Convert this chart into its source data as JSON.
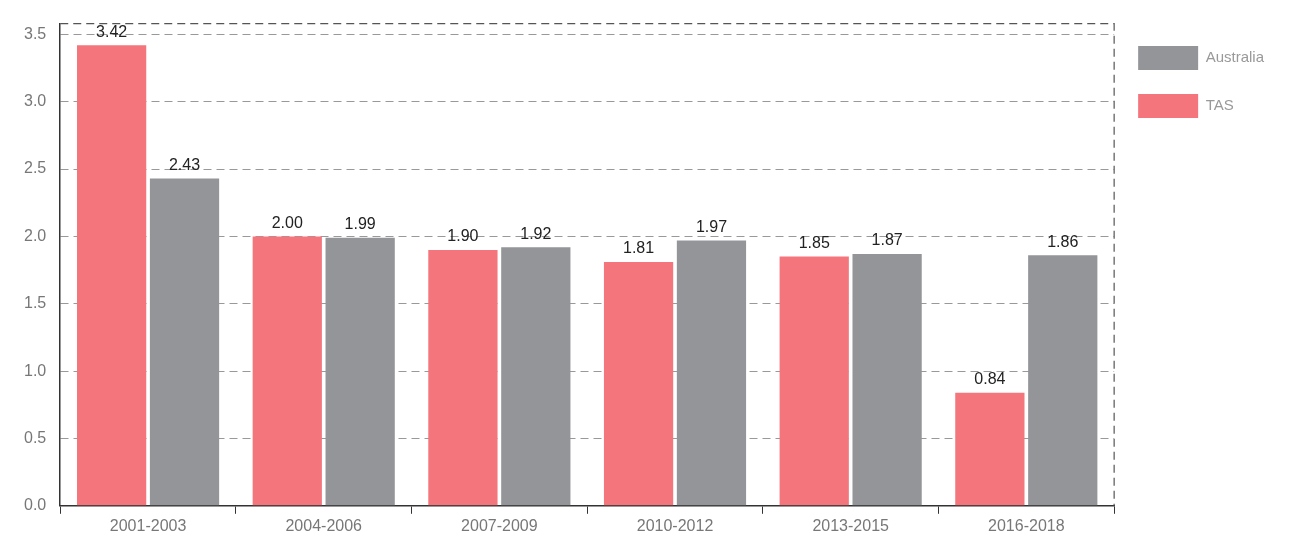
{
  "chart_data": {
    "type": "bar",
    "categories": [
      "2001-2003",
      "2004-2006",
      "2007-2009",
      "2010-2012",
      "2013-2015",
      "2016-2018"
    ],
    "series": [
      {
        "name": "TAS",
        "color": "#f4757c",
        "values": [
          3.42,
          2.0,
          1.9,
          1.81,
          1.85,
          0.84
        ],
        "value_labels": [
          "3.42",
          "2.00",
          "1.90",
          "1.81",
          "1.85",
          "0.84"
        ]
      },
      {
        "name": "Australia",
        "color": "#939598",
        "values": [
          2.43,
          1.99,
          1.92,
          1.97,
          1.87,
          1.86
        ],
        "value_labels": [
          "2.43",
          "1.99",
          "1.92",
          "1.97",
          "1.87",
          "1.86"
        ]
      }
    ],
    "ylim": [
      0,
      3.58
    ],
    "yticks": [
      {
        "value": 0,
        "label": "0.0"
      },
      {
        "value": 0.5,
        "label": "0.5"
      },
      {
        "value": 1,
        "label": "1.0"
      },
      {
        "value": 1.5,
        "label": "1.5"
      },
      {
        "value": 2,
        "label": "2.0"
      },
      {
        "value": 2.5,
        "label": "2.5"
      },
      {
        "value": 3,
        "label": "3.0"
      },
      {
        "value": 3.5,
        "label": "3.5"
      }
    ],
    "grid": "y",
    "legend": "top right"
  }
}
